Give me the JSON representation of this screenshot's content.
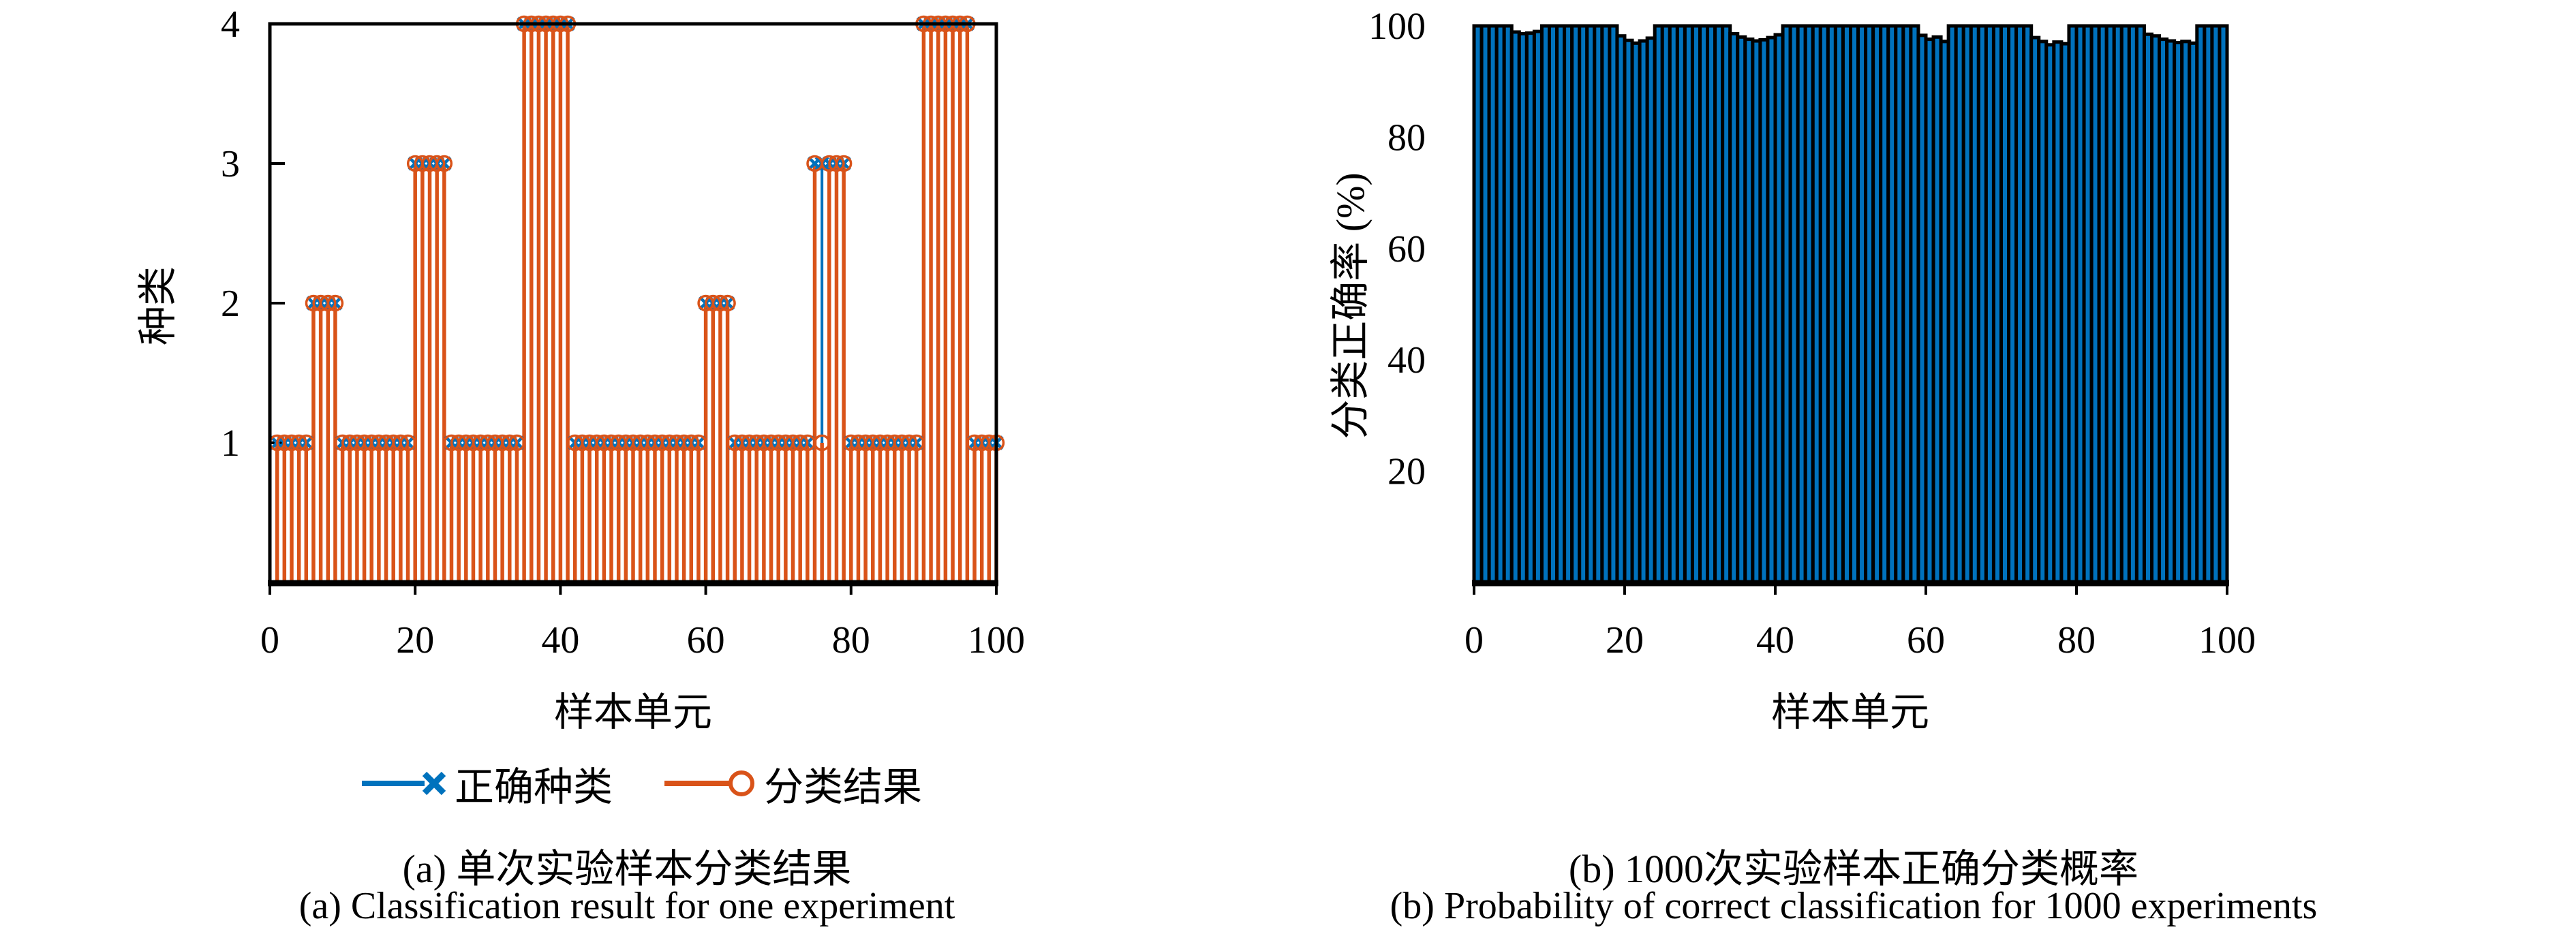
{
  "colors": {
    "correct_blue": "#0072BD",
    "result_orange": "#D95319",
    "axis_black": "#000000"
  },
  "chart_data": [
    {
      "id": "a",
      "type": "stem",
      "title": "(a) 单次实验样本分类结果",
      "title_en": "(a) Classification result for one experiment",
      "xlabel": "样本单元",
      "ylabel": "种类",
      "xlim": [
        0,
        100
      ],
      "ylim": [
        0,
        4
      ],
      "xticks": [
        0,
        20,
        40,
        60,
        80,
        100
      ],
      "yticks": [
        1,
        2,
        3,
        4
      ],
      "x_range": [
        1,
        100
      ],
      "legend_position": "below",
      "misclassified_sample": 76,
      "series": [
        {
          "name": "正确种类",
          "marker": "x",
          "color": "#0072BD",
          "values": [
            1,
            1,
            1,
            1,
            1,
            2,
            2,
            2,
            2,
            1,
            1,
            1,
            1,
            1,
            1,
            1,
            1,
            1,
            1,
            3,
            3,
            3,
            3,
            3,
            1,
            1,
            1,
            1,
            1,
            1,
            1,
            1,
            1,
            1,
            4,
            4,
            4,
            4,
            4,
            4,
            4,
            1,
            1,
            1,
            1,
            1,
            1,
            1,
            1,
            1,
            1,
            1,
            1,
            1,
            1,
            1,
            1,
            1,
            1,
            2,
            2,
            2,
            2,
            1,
            1,
            1,
            1,
            1,
            1,
            1,
            1,
            1,
            1,
            1,
            3,
            3,
            3,
            3,
            3,
            1,
            1,
            1,
            1,
            1,
            1,
            1,
            1,
            1,
            1,
            4,
            4,
            4,
            4,
            4,
            4,
            4,
            1,
            1,
            1,
            1
          ]
        },
        {
          "name": "分类结果",
          "marker": "circle",
          "color": "#D95319",
          "values": [
            1,
            1,
            1,
            1,
            1,
            2,
            2,
            2,
            2,
            1,
            1,
            1,
            1,
            1,
            1,
            1,
            1,
            1,
            1,
            3,
            3,
            3,
            3,
            3,
            1,
            1,
            1,
            1,
            1,
            1,
            1,
            1,
            1,
            1,
            4,
            4,
            4,
            4,
            4,
            4,
            4,
            1,
            1,
            1,
            1,
            1,
            1,
            1,
            1,
            1,
            1,
            1,
            1,
            1,
            1,
            1,
            1,
            1,
            1,
            2,
            2,
            2,
            2,
            1,
            1,
            1,
            1,
            1,
            1,
            1,
            1,
            1,
            1,
            1,
            3,
            1,
            3,
            3,
            3,
            1,
            1,
            1,
            1,
            1,
            1,
            1,
            1,
            1,
            1,
            4,
            4,
            4,
            4,
            4,
            4,
            4,
            1,
            1,
            1,
            1
          ]
        }
      ]
    },
    {
      "id": "b",
      "type": "bar",
      "title": "(b) 1000次实验样本正确分类概率",
      "title_en": "(b) Probability of correct classification for 1000 experiments",
      "xlabel": "样本单元",
      "ylabel": "分类正确率 (%)",
      "xlim": [
        0,
        100
      ],
      "ylim": [
        0,
        100
      ],
      "xticks": [
        0,
        20,
        40,
        60,
        80,
        100
      ],
      "yticks": [
        20,
        40,
        60,
        80,
        100
      ],
      "bar_color": "#0072BD",
      "bar_edge": "#000000",
      "x_range": [
        1,
        100
      ],
      "values": [
        100,
        100,
        100,
        100,
        100,
        98.9,
        98.6,
        98.7,
        99.0,
        100,
        100,
        100,
        100,
        100,
        100,
        100,
        100,
        100,
        100,
        98.2,
        97.4,
        96.9,
        97.3,
        97.8,
        100,
        100,
        100,
        100,
        100,
        100,
        100,
        100,
        100,
        100,
        98.6,
        98.0,
        97.6,
        97.3,
        97.5,
        97.9,
        98.4,
        100,
        100,
        100,
        100,
        100,
        100,
        100,
        100,
        100,
        100,
        100,
        100,
        100,
        100,
        100,
        100,
        100,
        100,
        98.3,
        97.6,
        98.0,
        97.2,
        100,
        100,
        100,
        100,
        100,
        100,
        100,
        100,
        100,
        100,
        100,
        97.9,
        97.2,
        96.6,
        97.1,
        96.8,
        100,
        100,
        100,
        100,
        100,
        100,
        100,
        100,
        100,
        100,
        98.5,
        98.2,
        97.6,
        97.3,
        97.0,
        97.2,
        96.9,
        100,
        100,
        100,
        100
      ]
    }
  ],
  "legend": {
    "items": [
      {
        "label": "正确种类",
        "marker": "x",
        "color": "#0072BD"
      },
      {
        "label": "分类结果",
        "marker": "circle",
        "color": "#D95319"
      }
    ]
  }
}
